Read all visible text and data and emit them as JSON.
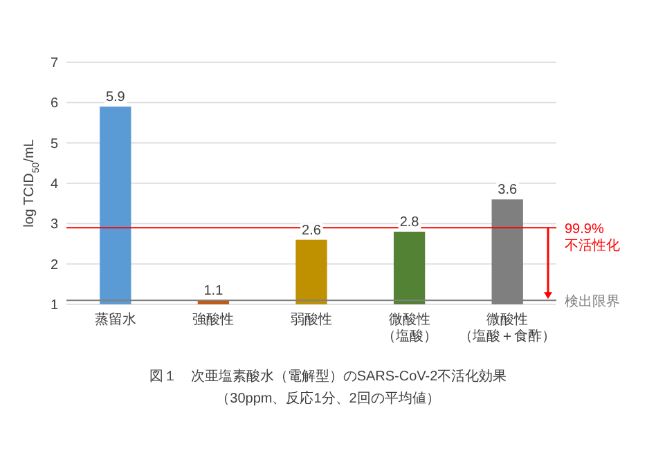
{
  "chart_data": {
    "type": "bar",
    "title": "図１　次亜塩素酸水（電解型）のSARS-CoV-2不活化効果",
    "subtitle": "（30ppm、反応1分、2回の平均値）",
    "ylabel": "log TCID$_{50}$/mL",
    "categories": [
      "蒸留水",
      "強酸性",
      "弱酸性",
      "微酸性（塩酸）",
      "微酸性（塩酸＋食酢）"
    ],
    "values": [
      5.9,
      1.1,
      2.6,
      2.8,
      3.6
    ],
    "colors": [
      "#5b9bd5",
      "#c55a11",
      "#bf9000",
      "#548235",
      "#7f7f7f"
    ],
    "data_labels": true,
    "ylim": [
      1,
      7
    ],
    "yticks": [
      1,
      2,
      3,
      4,
      5,
      6,
      7
    ],
    "grid": "y",
    "ref_lines": [
      {
        "axis": "y",
        "value": 2.9,
        "label": "99.9%\n不活性化",
        "color": "#ff0000"
      },
      {
        "axis": "y",
        "value": 1.1,
        "label": "検出限界",
        "color": "#7f7f7f"
      }
    ]
  }
}
